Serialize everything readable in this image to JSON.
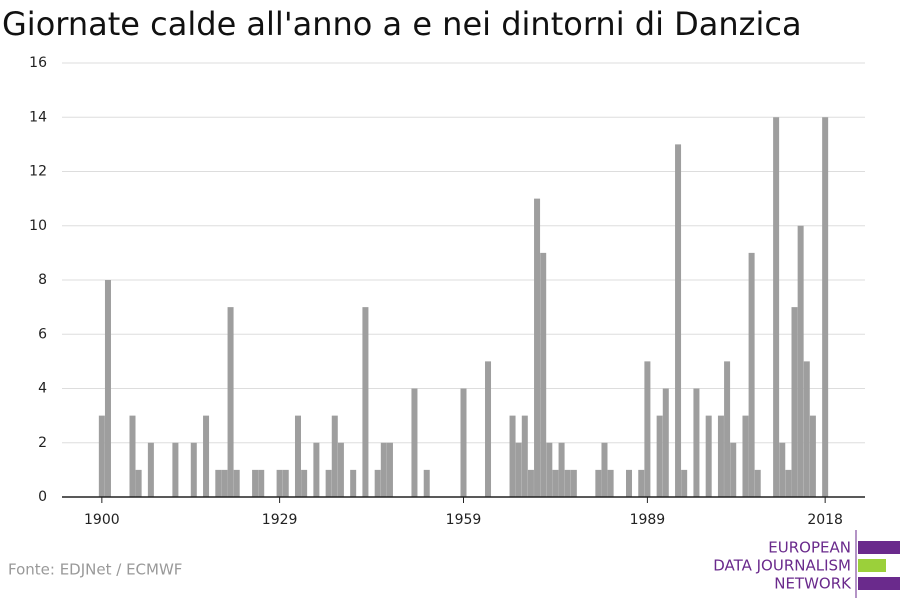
{
  "chart_data": {
    "type": "bar",
    "title": "Giornate calde all'anno a e nei dintorni di Danzica",
    "x": [
      1900,
      1901,
      1905,
      1906,
      1908,
      1912,
      1915,
      1917,
      1919,
      1920,
      1921,
      1922,
      1925,
      1926,
      1929,
      1930,
      1932,
      1933,
      1935,
      1937,
      1938,
      1939,
      1941,
      1943,
      1945,
      1946,
      1947,
      1951,
      1953,
      1959,
      1963,
      1967,
      1968,
      1969,
      1970,
      1971,
      1972,
      1973,
      1974,
      1975,
      1976,
      1977,
      1981,
      1982,
      1983,
      1986,
      1988,
      1989,
      1991,
      1992,
      1994,
      1995,
      1997,
      1999,
      2001,
      2002,
      2003,
      2005,
      2006,
      2007,
      2010,
      2011,
      2012,
      2013,
      2014,
      2015,
      2016,
      2018
    ],
    "values": [
      3,
      8,
      3,
      1,
      2,
      2,
      2,
      3,
      1,
      1,
      7,
      1,
      1,
      1,
      1,
      1,
      3,
      1,
      2,
      1,
      3,
      2,
      1,
      7,
      1,
      2,
      2,
      4,
      1,
      4,
      5,
      3,
      2,
      3,
      1,
      11,
      9,
      2,
      1,
      2,
      1,
      1,
      1,
      2,
      1,
      1,
      1,
      5,
      3,
      4,
      13,
      1,
      4,
      3,
      3,
      5,
      2,
      3,
      9,
      1,
      14,
      2,
      1,
      7,
      10,
      5,
      3,
      14
    ],
    "color": "#9e9e9e",
    "xlim": [
      1893.5,
      2024.5
    ],
    "xticks": [
      1900,
      1929,
      1959,
      1989,
      2018
    ],
    "ylim": [
      0,
      16
    ],
    "yticks": [
      0,
      2,
      4,
      6,
      8,
      10,
      12,
      14,
      16
    ],
    "grid": true,
    "source": "Fonte: EDJNet / ECMWF",
    "logo": [
      "EUROPEAN",
      "DATA JOURNALISM",
      "NETWORK"
    ]
  }
}
